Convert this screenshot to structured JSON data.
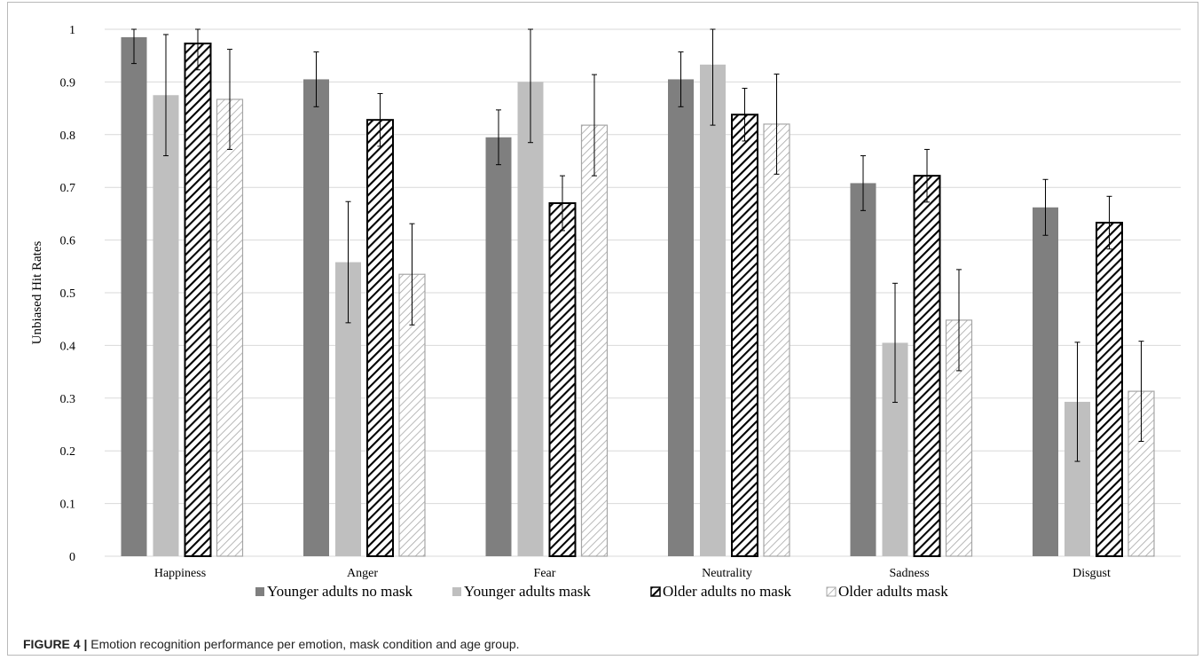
{
  "caption": {
    "label": "FIGURE 4 |",
    "text": "Emotion recognition performance per emotion, mask condition and age group."
  },
  "chart_data": {
    "type": "bar",
    "ylabel": "Unbiased Hit Rates",
    "xlabel": "",
    "ylim": [
      0,
      1
    ],
    "yticks": [
      "0",
      "0.1",
      "0.2",
      "0.3",
      "0.4",
      "0.5",
      "0.6",
      "0.7",
      "0.8",
      "0.9",
      "1"
    ],
    "grid": true,
    "legend_position": "bottom",
    "categories": [
      "Happiness",
      "Anger",
      "Fear",
      "Neutrality",
      "Sadness",
      "Disgust"
    ],
    "series": [
      {
        "name": "Younger adults no mask",
        "style": "solid-dark",
        "color": "#7f7f7f",
        "values": [
          0.985,
          0.905,
          0.795,
          0.905,
          0.708,
          0.662
        ],
        "error": [
          0.05,
          0.052,
          0.052,
          0.052,
          0.052,
          0.053
        ]
      },
      {
        "name": "Younger adults mask",
        "style": "solid-light",
        "color": "#bfbfbf",
        "values": [
          0.875,
          0.558,
          0.9,
          0.933,
          0.405,
          0.293
        ],
        "error": [
          0.115,
          0.115,
          0.115,
          0.115,
          0.113,
          0.113
        ]
      },
      {
        "name": "Older adults no mask",
        "style": "hatch-dark",
        "color": "#000000",
        "values": [
          0.973,
          0.828,
          0.67,
          0.838,
          0.722,
          0.633
        ],
        "error": [
          0.05,
          0.05,
          0.052,
          0.05,
          0.05,
          0.05
        ]
      },
      {
        "name": "Older adults mask",
        "style": "hatch-light",
        "color": "#a6a6a6",
        "values": [
          0.867,
          0.535,
          0.818,
          0.82,
          0.448,
          0.313
        ],
        "error": [
          0.095,
          0.096,
          0.096,
          0.095,
          0.096,
          0.095
        ]
      }
    ]
  }
}
